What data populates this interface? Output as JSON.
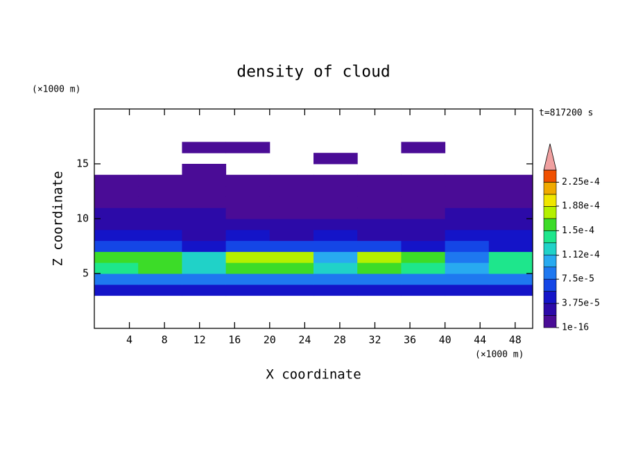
{
  "chart_data": {
    "type": "contour",
    "title": "density of cloud",
    "xlabel": "X coordinate",
    "ylabel": "Z coordinate",
    "x_unit": "(×1000 m)",
    "y_unit": "(×1000 m)",
    "annotation": "t=817200 s",
    "xlim": [
      0,
      50
    ],
    "ylim": [
      0,
      20
    ],
    "xticks": [
      4,
      8,
      12,
      16,
      20,
      24,
      28,
      32,
      36,
      40,
      44,
      48
    ],
    "yticks": [
      5,
      10,
      15
    ],
    "x": [
      2.5,
      7.5,
      12.5,
      17.5,
      22.5,
      27.5,
      32.5,
      37.5,
      42.5,
      47.5
    ],
    "y": [
      3.5,
      4.5,
      5.5,
      6.5,
      7.5,
      8.5,
      9.5,
      10.5,
      11.5,
      12.5,
      13.5,
      14.5,
      15.5,
      16.5,
      17.5
    ],
    "z": [
      [
        4e-05,
        4e-05,
        4e-05,
        4e-05,
        4e-05,
        4e-05,
        4e-05,
        4e-05,
        4e-05,
        4e-05
      ],
      [
        8e-05,
        8e-05,
        8e-05,
        8e-05,
        8e-05,
        8e-05,
        8e-05,
        8e-05,
        8e-05,
        8e-05
      ],
      [
        0.00014,
        0.00015,
        0.00013,
        0.00015,
        0.00015,
        0.00012,
        0.00015,
        0.00014,
        0.00011,
        0.00014
      ],
      [
        0.00016,
        0.00016,
        0.00012,
        0.00017,
        0.00017,
        0.0001,
        0.00018,
        0.00015,
        9e-05,
        0.00014
      ],
      [
        6e-05,
        7e-05,
        4e-05,
        7e-05,
        6e-05,
        6e-05,
        7e-05,
        5e-05,
        6e-05,
        5e-05
      ],
      [
        4e-05,
        4e-05,
        3e-05,
        4e-05,
        3e-05,
        4e-05,
        3e-05,
        3e-05,
        4e-05,
        4e-05
      ],
      [
        3e-05,
        3e-05,
        2.5e-05,
        2.5e-05,
        2.5e-05,
        2.5e-05,
        2.5e-05,
        2.5e-05,
        3e-05,
        3e-05
      ],
      [
        2.5e-05,
        2e-05,
        2e-05,
        1.5e-05,
        1.5e-05,
        1.5e-05,
        1.5e-05,
        1.5e-05,
        2e-05,
        2.5e-05
      ],
      [
        1.5e-05,
        1.5e-05,
        1.5e-05,
        1e-05,
        1e-05,
        1e-05,
        1e-05,
        1e-05,
        1.5e-05,
        1.5e-05
      ],
      [
        1e-05,
        1e-05,
        1e-05,
        8e-06,
        8e-06,
        5e-06,
        8e-06,
        8e-06,
        1e-05,
        1e-05
      ],
      [
        5e-06,
        5e-06,
        5e-06,
        5e-06,
        5e-06,
        5e-06,
        5e-06,
        5e-06,
        5e-06,
        5e-06
      ],
      [
        null,
        null,
        5e-06,
        null,
        null,
        null,
        null,
        null,
        null,
        null
      ],
      [
        null,
        null,
        null,
        null,
        null,
        5e-06,
        null,
        null,
        null,
        null
      ],
      [
        null,
        null,
        5e-06,
        5e-06,
        null,
        null,
        null,
        5e-06,
        null,
        null
      ],
      [
        null,
        null,
        null,
        null,
        null,
        null,
        null,
        null,
        null,
        null
      ]
    ],
    "levels": [
      1e-16,
      1.875e-05,
      3.75e-05,
      5.625e-05,
      7.5e-05,
      9.375e-05,
      0.0001125,
      0.00013125,
      0.00015,
      0.00016875,
      0.0001875,
      0.00020625,
      0.000225,
      0.00024375
    ],
    "colors": [
      "#4a0c96",
      "#2c0aa8",
      "#1414c8",
      "#1446e6",
      "#1e78f0",
      "#28aaf0",
      "#20d2c8",
      "#1ee68c",
      "#3cdc28",
      "#b4f000",
      "#f0e600",
      "#f0aa00",
      "#f05000"
    ],
    "extend_color": "#f0a0a0",
    "colorbar_ticks": [
      1e-16,
      {
        "value": 3.75e-05,
        "label": "3.75e-5"
      },
      {
        "value": 7.5e-05,
        "label": "7.5e-5"
      },
      {
        "value": 0.000112,
        "label": "1.12e-4"
      },
      {
        "value": 0.00015,
        "label": "1.5e-4"
      },
      {
        "value": 0.000188,
        "label": "1.88e-4"
      },
      {
        "value": 0.000225,
        "label": "2.25e-4"
      }
    ]
  }
}
